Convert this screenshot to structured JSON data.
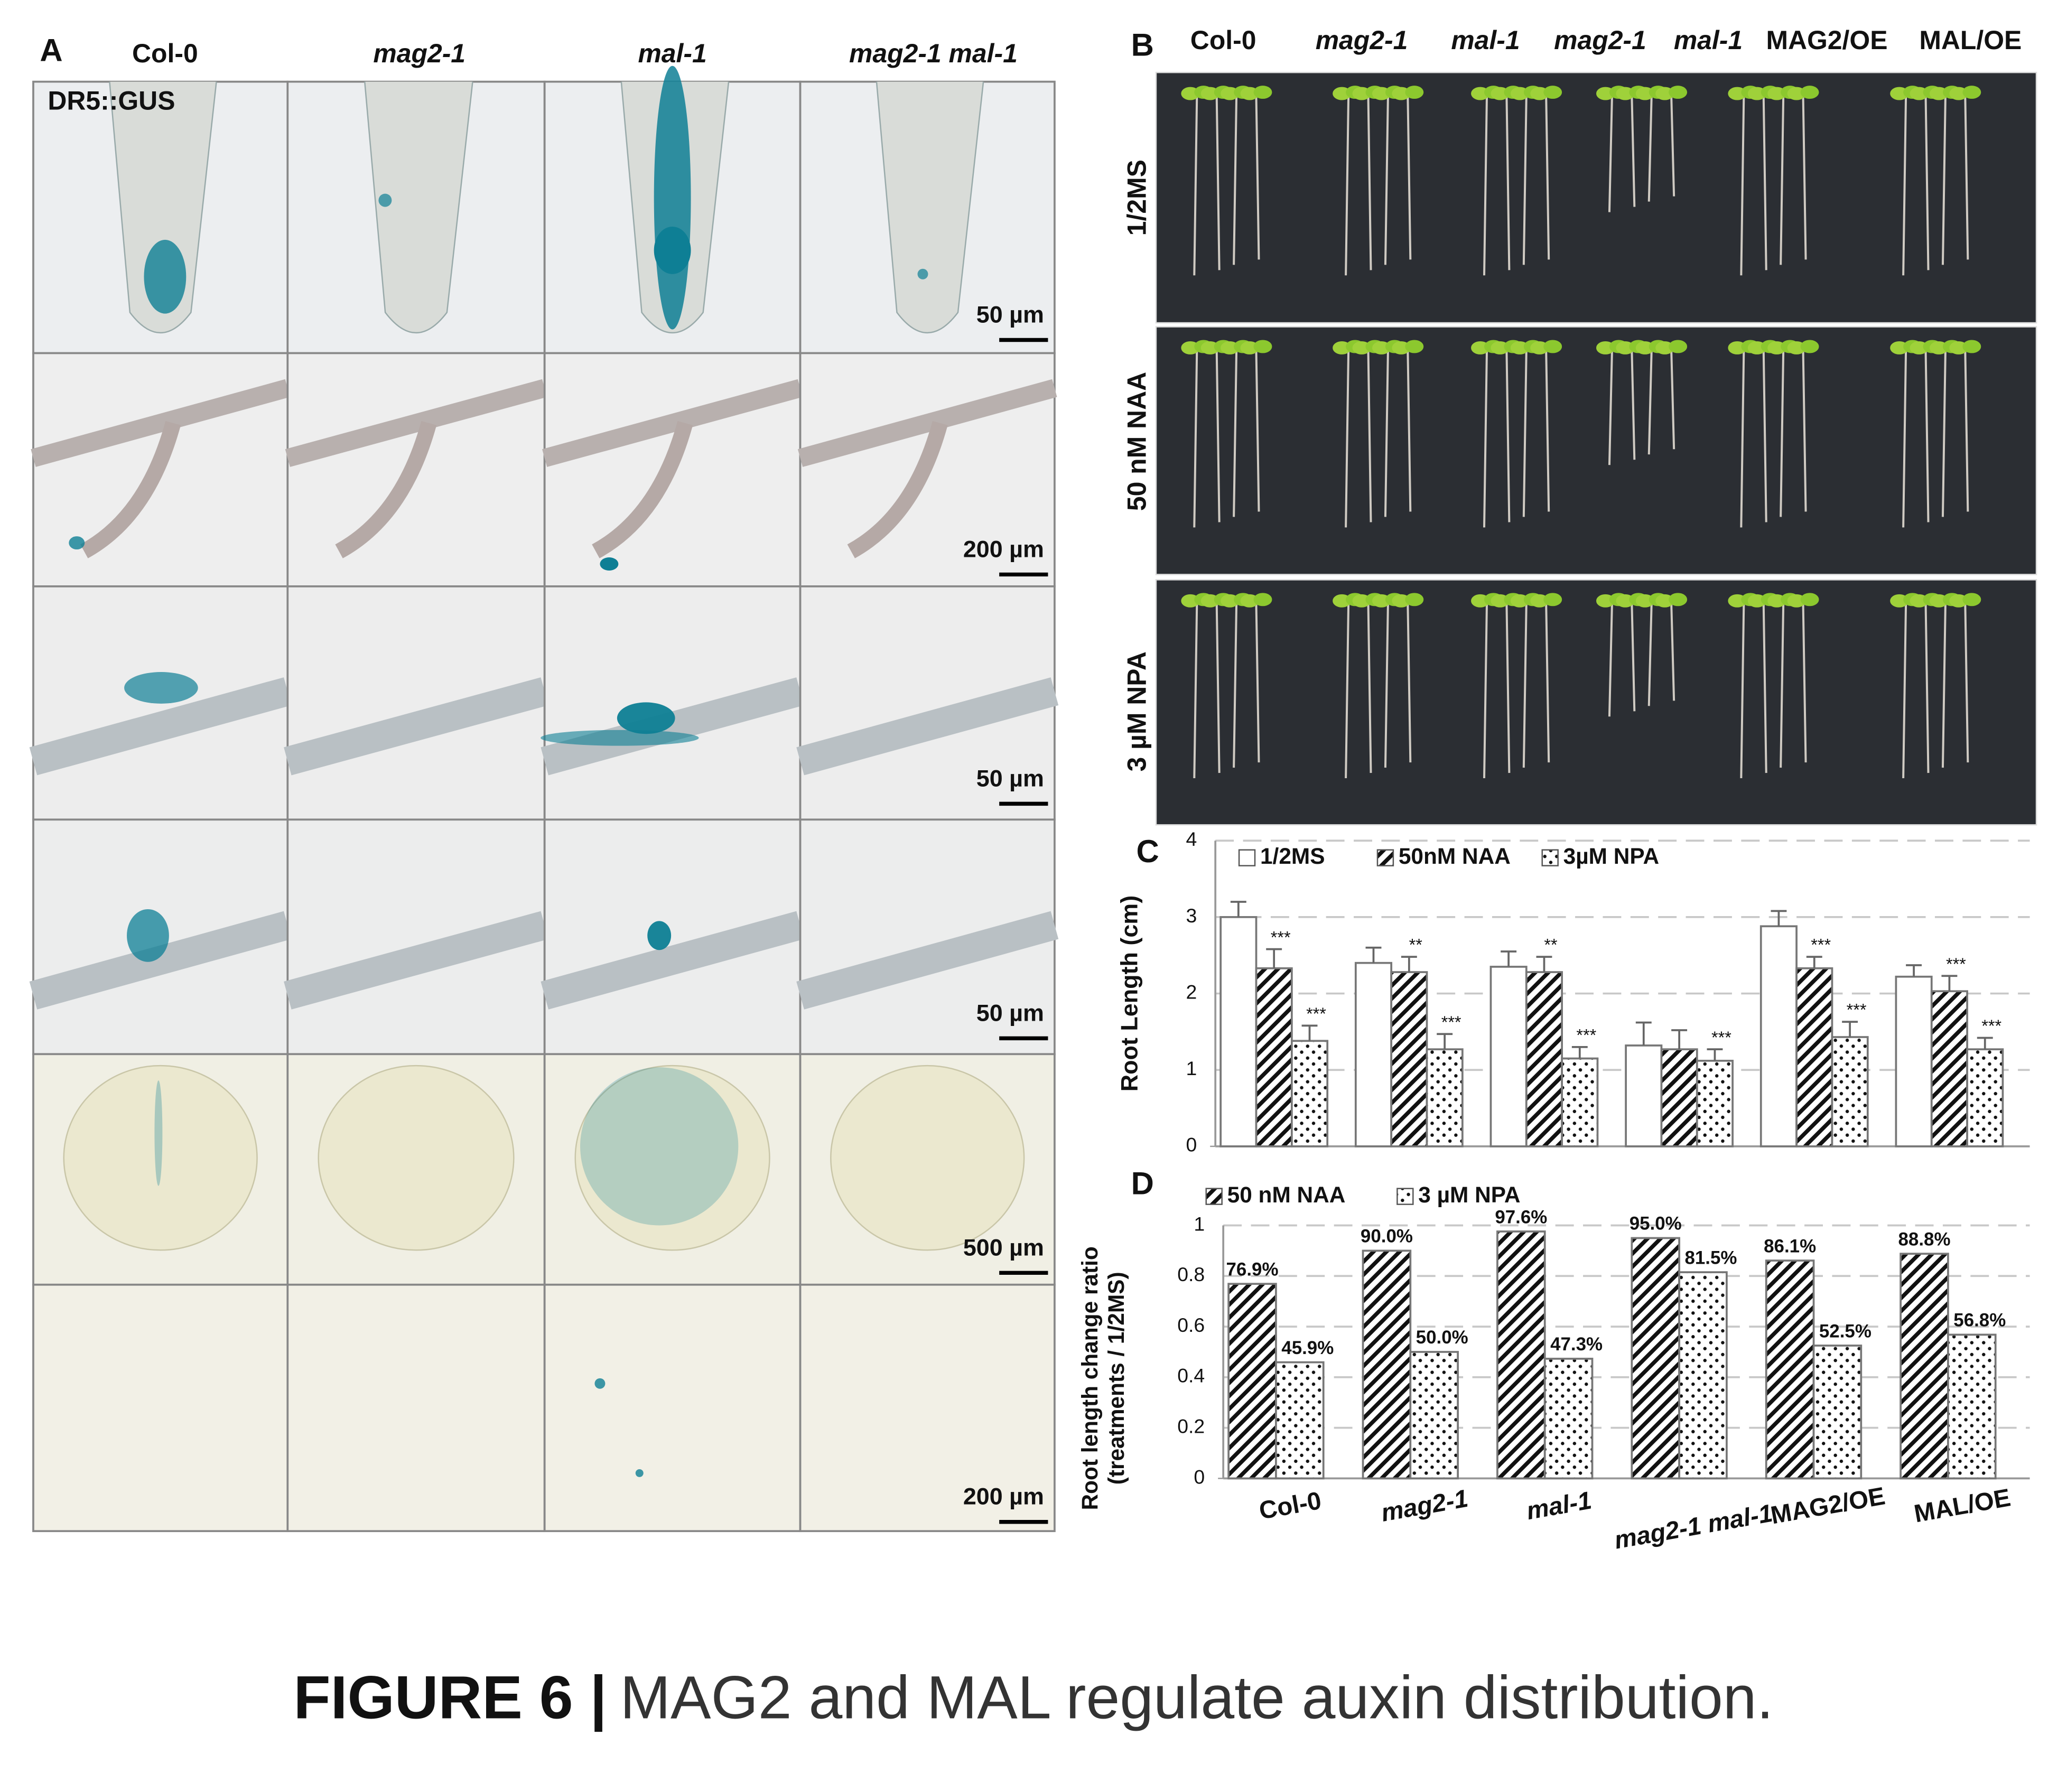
{
  "panel_a": {
    "label": "A",
    "columns": [
      "Col-0",
      "mag2-1",
      "mal-1",
      "mag2-1 mal-1"
    ],
    "reporter": "DR5::GUS",
    "scale_bars": [
      "50 µm",
      "200 µm",
      "50 µm",
      "50 µm",
      "500 µm",
      "200 µm"
    ]
  },
  "panel_b": {
    "label": "B",
    "columns": [
      "Col-0",
      "mag2-1",
      "mal-1",
      "mag2-1",
      "mal-1",
      "MAG2/OE",
      "MAL/OE"
    ],
    "rows": [
      "1/2MS",
      "50 nM NAA",
      "3 µM NPA"
    ]
  },
  "chart_data": [
    {
      "type": "bar",
      "panel": "C",
      "ylabel": "Root Length (cm)",
      "ylim": [
        0,
        4
      ],
      "yticks": [
        0,
        1,
        2,
        3,
        4
      ],
      "grid": true,
      "series": [
        {
          "name": "1/2MS",
          "color": "#ffffff",
          "values": [
            3.0,
            2.4,
            2.35,
            1.32,
            2.88,
            2.22
          ],
          "errors": [
            0.2,
            0.2,
            0.2,
            0.3,
            0.2,
            0.15
          ]
        },
        {
          "name": "50nM NAA",
          "color": "#000000",
          "pattern": "hatch",
          "values": [
            2.33,
            2.28,
            2.28,
            1.27,
            2.33,
            2.03
          ],
          "errors": [
            0.25,
            0.2,
            0.2,
            0.25,
            0.15,
            0.2
          ],
          "significance": [
            "***",
            "**",
            "**",
            null,
            "***",
            "***"
          ]
        },
        {
          "name": "3µM NPA",
          "color": "#000000",
          "pattern": "dots",
          "values": [
            1.38,
            1.27,
            1.15,
            1.12,
            1.43,
            1.27
          ],
          "errors": [
            0.2,
            0.2,
            0.15,
            0.15,
            0.2,
            0.15
          ],
          "significance": [
            "***",
            "***",
            "***",
            "***",
            "***",
            "***"
          ]
        }
      ]
    },
    {
      "type": "bar",
      "panel": "D",
      "ylabel": [
        "Root length change ratio",
        "(treatments / 1/2MS)"
      ],
      "categories": [
        "Col-0",
        "mag2-1",
        "mal-1",
        "mag2-1  mal-1",
        "MAG2/OE",
        "MAL/OE"
      ],
      "ylim": [
        0,
        1
      ],
      "yticks": [
        0,
        0.2,
        0.4,
        0.6,
        0.8,
        1
      ],
      "grid": true,
      "series": [
        {
          "name": "50 nM NAA",
          "color": "#000000",
          "pattern": "hatch",
          "values": [
            0.769,
            0.9,
            0.976,
            0.95,
            0.861,
            0.888
          ],
          "value_labels": [
            "76.9%",
            "90.0%",
            "97.6%",
            "95.0%",
            "86.1%",
            "88.8%"
          ]
        },
        {
          "name": "3 µM NPA",
          "color": "#000000",
          "pattern": "dots",
          "values": [
            0.459,
            0.5,
            0.473,
            0.815,
            0.525,
            0.568
          ],
          "value_labels": [
            "45.9%",
            "50.0%",
            "47.3%",
            "81.5%",
            "52.5%",
            "56.8%"
          ]
        }
      ]
    }
  ],
  "caption": {
    "label": "FIGURE 6 |",
    "text": "MAG2 and MAL regulate auxin distribution."
  }
}
